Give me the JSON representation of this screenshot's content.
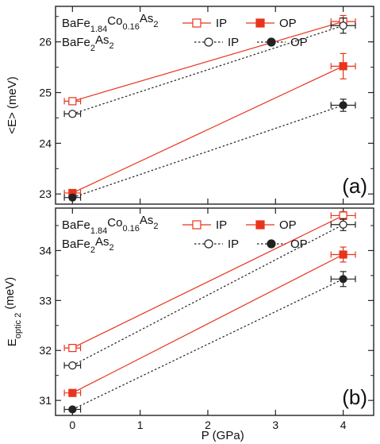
{
  "colors": {
    "sample_doped": "#e8341c",
    "sample_parent": "#222222",
    "axis": "#222222"
  },
  "chart_data": [
    {
      "type": "scatter",
      "panel_label": "(a)",
      "xlabel": "",
      "ylabel": "<E> (meV)",
      "xlim": [
        -0.25,
        4.45
      ],
      "ylim": [
        22.8,
        26.7
      ],
      "xticks": [
        0,
        1,
        2,
        3,
        4
      ],
      "yticks": [
        23,
        24,
        25,
        26
      ],
      "legend": {
        "placement": "top-left",
        "rows": [
          {
            "sample": "BaFe1.84Co0.16As2",
            "sample_base": "BaFe",
            "sub1": "1.84",
            "mid1": "Co",
            "sub2": "0.16",
            "mid2": "As",
            "sub3": "2",
            "ip": "IP",
            "op": "OP"
          },
          {
            "sample": "BaFe2As2",
            "sample_base": "BaFe",
            "sub1": "2",
            "mid1": "As",
            "sub2": "2",
            "mid2": "",
            "sub3": "",
            "ip": "IP",
            "op": "OP"
          }
        ]
      },
      "series": [
        {
          "name": "BaFe1.84Co0.16As2 IP",
          "color": "#e8341c",
          "marker": "square-open",
          "line": "solid",
          "x": [
            0,
            4
          ],
          "y": [
            24.83,
            26.4
          ],
          "xerr": [
            0.12,
            0.18
          ],
          "yerr": [
            0.05,
            0.12
          ]
        },
        {
          "name": "BaFe1.84Co0.16As2 OP",
          "color": "#e8341c",
          "marker": "square-filled",
          "line": "solid",
          "x": [
            0,
            4
          ],
          "y": [
            23.02,
            25.52
          ],
          "xerr": [
            0.12,
            0.18
          ],
          "yerr": [
            0.05,
            0.25
          ]
        },
        {
          "name": "BaFe2As2 IP",
          "color": "#222222",
          "marker": "circle-open",
          "line": "dotted",
          "x": [
            0,
            4
          ],
          "y": [
            24.58,
            26.32
          ],
          "xerr": [
            0.12,
            0.18
          ],
          "yerr": [
            0.05,
            0.15
          ]
        },
        {
          "name": "BaFe2As2 OP",
          "color": "#222222",
          "marker": "circle-filled",
          "line": "dotted",
          "x": [
            0,
            4
          ],
          "y": [
            22.93,
            24.75
          ],
          "xerr": [
            0.12,
            0.18
          ],
          "yerr": [
            0.05,
            0.12
          ]
        }
      ]
    },
    {
      "type": "scatter",
      "panel_label": "(b)",
      "xlabel": "P (GPa)",
      "ylabel": "E",
      "ylabel_sub": "optic 2",
      "ylabel_unit": " (meV)",
      "xlim": [
        -0.25,
        4.45
      ],
      "ylim": [
        30.7,
        34.85
      ],
      "xticks": [
        0,
        1,
        2,
        3,
        4
      ],
      "yticks": [
        31,
        32,
        33,
        34
      ],
      "legend": {
        "placement": "top-left",
        "rows": [
          {
            "sample": "BaFe1.84Co0.16As2",
            "sample_base": "BaFe",
            "sub1": "1.84",
            "mid1": "Co",
            "sub2": "0.16",
            "mid2": "As",
            "sub3": "2",
            "ip": "IP",
            "op": "OP"
          },
          {
            "sample": "BaFe2As2",
            "sample_base": "BaFe",
            "sub1": "2",
            "mid1": "As",
            "sub2": "2",
            "mid2": "",
            "sub3": "",
            "ip": "IP",
            "op": "OP"
          }
        ]
      },
      "series": [
        {
          "name": "BaFe1.84Co0.16As2 IP",
          "color": "#e8341c",
          "marker": "square-open",
          "line": "solid",
          "x": [
            0,
            4
          ],
          "y": [
            32.05,
            34.7
          ],
          "xerr": [
            0.12,
            0.18
          ],
          "yerr": [
            0.04,
            0.08
          ]
        },
        {
          "name": "BaFe1.84Co0.16As2 OP",
          "color": "#e8341c",
          "marker": "square-filled",
          "line": "solid",
          "x": [
            0,
            4
          ],
          "y": [
            31.15,
            33.92
          ],
          "xerr": [
            0.12,
            0.18
          ],
          "yerr": [
            0.04,
            0.15
          ]
        },
        {
          "name": "BaFe2As2 IP",
          "color": "#222222",
          "marker": "circle-open",
          "line": "dotted",
          "x": [
            0,
            4
          ],
          "y": [
            31.7,
            34.52
          ],
          "xerr": [
            0.12,
            0.18
          ],
          "yerr": [
            0.04,
            0.12
          ]
        },
        {
          "name": "BaFe2As2 OP",
          "color": "#222222",
          "marker": "circle-filled",
          "line": "dotted",
          "x": [
            0,
            4
          ],
          "y": [
            30.82,
            33.43
          ],
          "xerr": [
            0.12,
            0.18
          ],
          "yerr": [
            0.04,
            0.15
          ]
        }
      ]
    }
  ]
}
